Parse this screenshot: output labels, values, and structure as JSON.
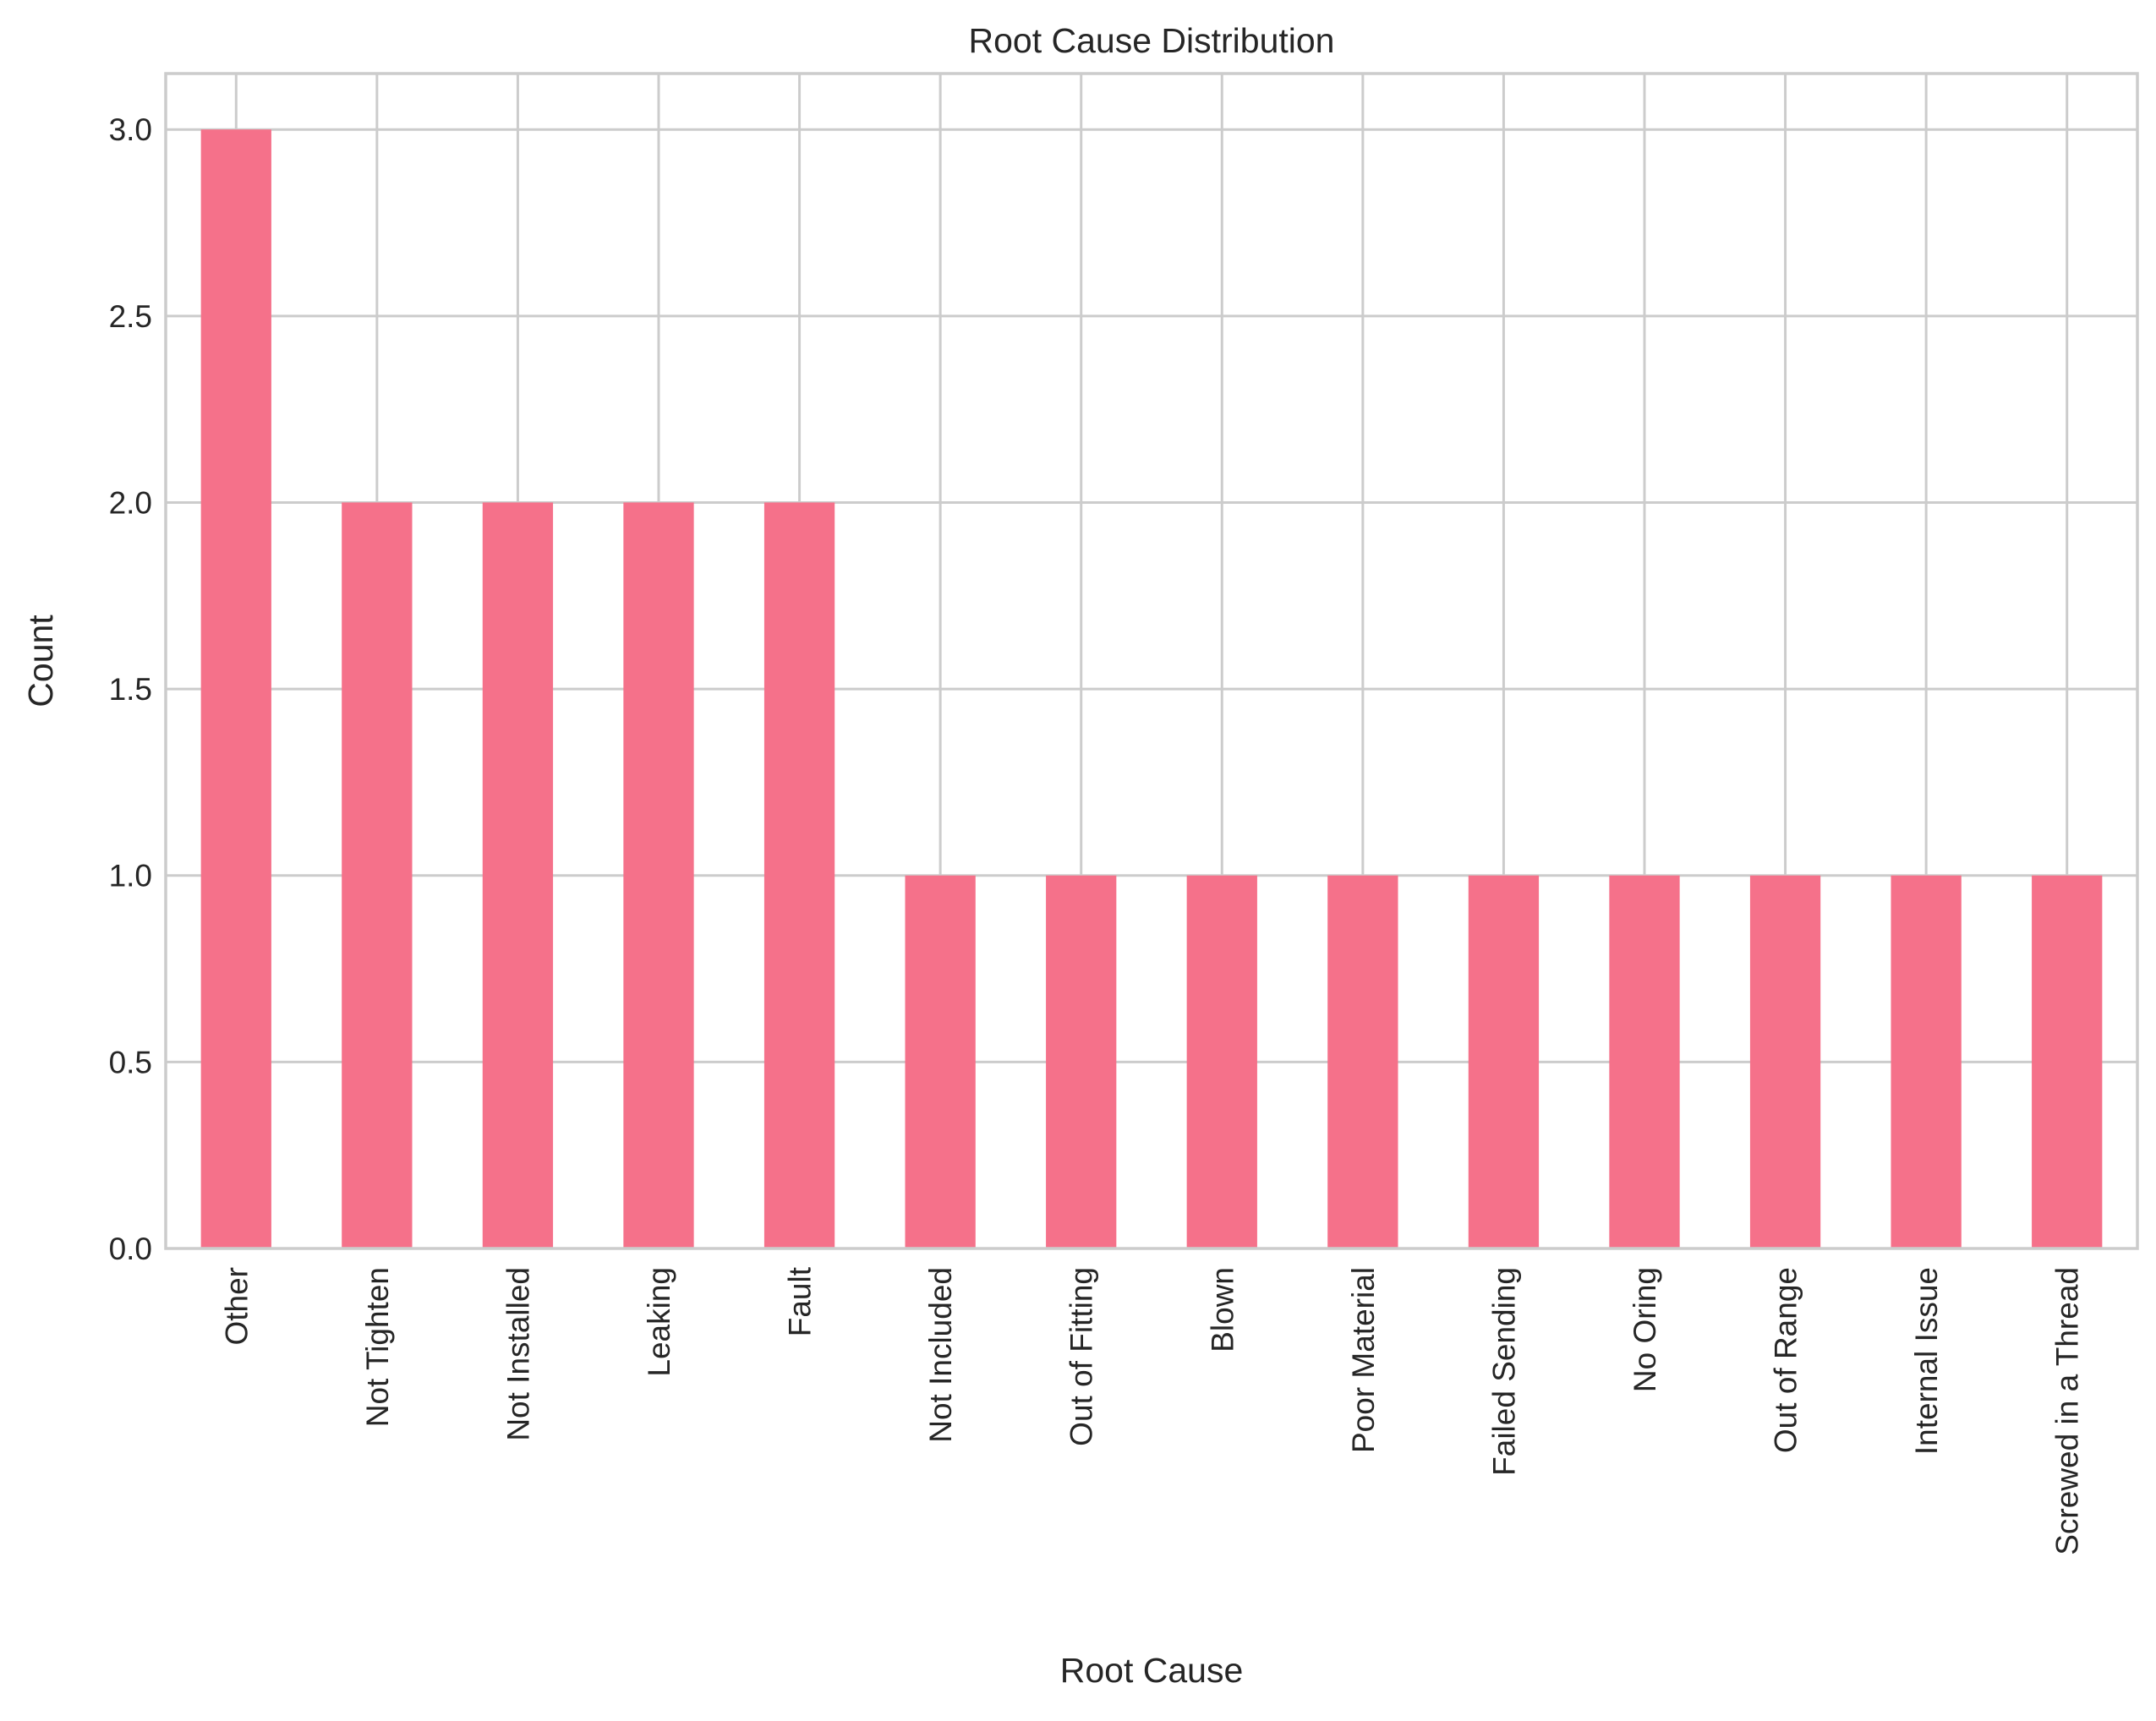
{
  "chart_data": {
    "type": "bar",
    "title": "Root Cause Distribution",
    "xlabel": "Root Cause",
    "ylabel": "Count",
    "categories": [
      "Other",
      "Not Tighten",
      "Not Installed",
      "Leaking",
      "Fault",
      "Not Included",
      "Out of Fitting",
      "Blown",
      "Poor Material",
      "Failed Sending",
      "No Oring",
      "Out of Range",
      "Internal Issue",
      "Screwed in a Thread"
    ],
    "values": [
      3,
      2,
      2,
      2,
      2,
      1,
      1,
      1,
      1,
      1,
      1,
      1,
      1,
      1
    ],
    "ylim": [
      0,
      3.15
    ],
    "yticks": [
      "0.0",
      "0.5",
      "1.0",
      "1.5",
      "2.0",
      "2.5",
      "3.0"
    ],
    "grid": true,
    "colors": {
      "bar": "#f5718a",
      "grid": "#cccccc",
      "spine": "#cccccc",
      "text": "#262626"
    }
  }
}
